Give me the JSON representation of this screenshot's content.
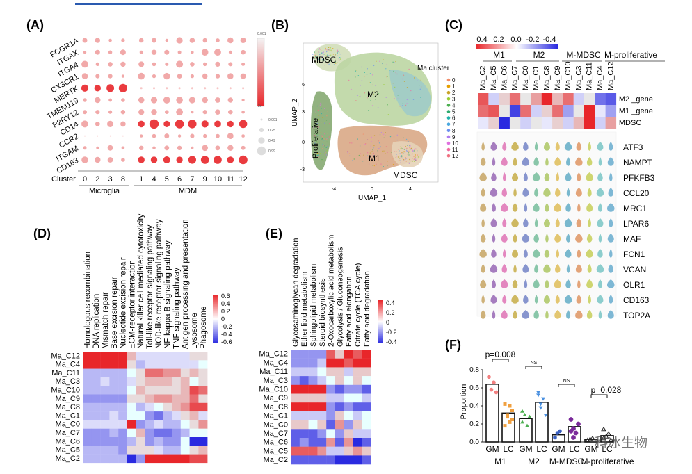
{
  "panels": {
    "A": "(A)",
    "B": "(B)",
    "C": "(C)",
    "D": "(D)",
    "E": "(E)",
    "F": "(F)"
  },
  "colors": {
    "red": "#e8262a",
    "blue": "#2a2ae0",
    "white": "#ffffff",
    "green": "#8fb87a",
    "tan": "#d9a07a"
  },
  "panel_a": {
    "genes": [
      "FCGR1A",
      "ITGAX",
      "ITGA4",
      "CX3CR1",
      "MERTK",
      "TMEM119",
      "P2RY12",
      "CD14",
      "CCR2",
      "ITGAM",
      "CD163"
    ],
    "clusters": [
      "0",
      "2",
      "3",
      "8",
      "1",
      "4",
      "5",
      "6",
      "7",
      "9",
      "10",
      "11",
      "12"
    ],
    "cluster_label": "Cluster",
    "group_labels": [
      "Microglia",
      "MDM"
    ],
    "color_legend": {
      "top": "0.001",
      "bottom": "2e-"
    },
    "size_legend": [
      "0.001",
      "0.25",
      "0.49",
      "0.99"
    ]
  },
  "panel_b": {
    "xlabel": "UMAP_1",
    "ylabel": "UMAP_2",
    "legend_title": "Ma cluster",
    "legend_items": [
      "0",
      "1",
      "2",
      "3",
      "4",
      "5",
      "6",
      "7",
      "8",
      "9",
      "10",
      "11",
      "12"
    ],
    "legend_colors": [
      "#f28e6b",
      "#e69f00",
      "#c9a227",
      "#9acd32",
      "#4caf50",
      "#2eaa6e",
      "#20b2aa",
      "#4aa8e0",
      "#6a8ff0",
      "#b07cf0",
      "#e070e0",
      "#f06aa0",
      "#f07080"
    ],
    "region_labels": [
      "MDSC",
      "M2",
      "Proliferative",
      "M1",
      "MDSC"
    ],
    "xticks": [
      "-4",
      "0",
      "4"
    ],
    "yticks": [
      "6",
      "3",
      "0",
      "-3"
    ]
  },
  "panel_c": {
    "scale_ticks": [
      "0.4",
      "0.2",
      "0.0",
      "-0.2",
      "-0.4"
    ],
    "groups": [
      "M1",
      "M2",
      "M-MDSC",
      "M-proliferative"
    ],
    "clusters": [
      "Ma_C2",
      "Ma_C5",
      "Ma_C6",
      "Ma_C7",
      "Ma_C0",
      "Ma_C1",
      "Ma_C8",
      "Ma_C9",
      "Ma_C10",
      "Ma_C3",
      "Ma_C11",
      "Ma_C4",
      "Ma_C12"
    ],
    "rows": [
      "M2 _gene",
      "M1 _gene",
      "MDSC"
    ],
    "matrix": [
      [
        0.35,
        -0.1,
        0.1,
        0.3,
        0.05,
        0.2,
        0.45,
        0.15,
        0.3,
        -0.1,
        0.05,
        -0.3,
        -0.35
      ],
      [
        0.3,
        0.35,
        0.05,
        -0.4,
        0.3,
        -0.1,
        0.1,
        0.3,
        -0.2,
        0.05,
        0.45,
        -0.05,
        -0.2
      ],
      [
        -0.05,
        0.1,
        -0.45,
        0.05,
        -0.1,
        0.05,
        -0.05,
        0.1,
        -0.1,
        0.15,
        0.45,
        -0.1,
        0.2
      ]
    ],
    "violin_genes": [
      "ATF3",
      "NAMPT",
      "PFKFB3",
      "CCL20",
      "MRC1",
      "LPAR6",
      "MAF",
      "FCN1",
      "VCAN",
      "OLR1",
      "CD163",
      "TOP2A"
    ],
    "violin_colors": [
      "#c9a86a",
      "#9c6fb8",
      "#e07ab8",
      "#c9b050",
      "#7a8ac9",
      "#7cc0a0",
      "#b0c96a",
      "#e0c060",
      "#6ab0c9",
      "#e09a6a",
      "#c9d060",
      "#80c8c8",
      "#70b0d0"
    ]
  },
  "panel_d": {
    "pathways": [
      "Homologous recombination",
      "DNA replication",
      "Mismatch repair",
      "Base excision repair",
      "Nucleotide excision repair",
      "ECM-receptor interaction",
      "Natural killer cell mediated cytotoxicity",
      "Toll-like receptor signaling pathway",
      "NOD-like receptor signaling pathway",
      "NF-kappa B signaling pathway",
      "TNF signaling pathway",
      "Antigen processing and presentation",
      "Lysosome",
      "Phagosome"
    ],
    "rows": [
      "Ma_C12",
      "Ma_C4",
      "Ma_C11",
      "Ma_C3",
      "Ma_C10",
      "Ma_C9",
      "Ma_C8",
      "Ma_C1",
      "Ma_C0",
      "Ma_C7",
      "Ma_C6",
      "Ma_C5",
      "Ma_C2"
    ],
    "scale_ticks": [
      "0.6",
      "0.4",
      "0.2",
      "0",
      "-0.2",
      "-0.4",
      "-0.6"
    ],
    "matrix": [
      [
        0.6,
        0.6,
        0.6,
        0.6,
        0.6,
        0.2,
        -0.1,
        -0.1,
        -0.1,
        -0.1,
        -0.1,
        -0.1,
        0.1,
        0.1
      ],
      [
        0.6,
        0.6,
        0.6,
        0.6,
        0.6,
        0.1,
        -0.2,
        -0.1,
        -0.1,
        -0.1,
        -0.1,
        -0.1,
        -0.1,
        0.0
      ],
      [
        -0.2,
        -0.2,
        -0.2,
        -0.2,
        -0.2,
        0.0,
        0.1,
        0.4,
        0.4,
        0.3,
        0.3,
        0.1,
        0.2,
        0.1
      ],
      [
        -0.2,
        -0.2,
        -0.1,
        -0.2,
        -0.2,
        -0.1,
        0.1,
        0.2,
        0.2,
        0.2,
        0.1,
        0.2,
        0.0,
        0.1
      ],
      [
        -0.2,
        -0.2,
        -0.2,
        -0.2,
        -0.2,
        0.0,
        0.2,
        0.1,
        0.1,
        0.1,
        0.1,
        0.2,
        0.5,
        0.4
      ],
      [
        -0.3,
        -0.3,
        -0.3,
        -0.3,
        -0.3,
        0.1,
        0.1,
        0.2,
        0.3,
        0.3,
        0.2,
        0.2,
        0.4,
        0.1
      ],
      [
        -0.2,
        -0.2,
        -0.2,
        -0.2,
        -0.2,
        0.0,
        -0.2,
        -0.1,
        0.0,
        0.1,
        0.2,
        0.3,
        0.5,
        0.5
      ],
      [
        -0.2,
        -0.2,
        -0.2,
        -0.1,
        -0.2,
        0.0,
        0.0,
        -0.3,
        -0.4,
        -0.2,
        -0.1,
        0.1,
        0.2,
        -0.1
      ],
      [
        -0.1,
        -0.1,
        -0.1,
        -0.1,
        -0.1,
        0.6,
        -0.3,
        -0.2,
        -0.1,
        -0.2,
        -0.2,
        0.0,
        0.1,
        0.3
      ],
      [
        -0.3,
        -0.3,
        -0.3,
        -0.2,
        -0.3,
        0.0,
        0.2,
        -0.3,
        -0.4,
        -0.4,
        -0.3,
        -0.2,
        0.0,
        0.0
      ],
      [
        -0.3,
        -0.3,
        -0.3,
        -0.3,
        -0.3,
        -0.2,
        0.1,
        -0.3,
        -0.2,
        -0.3,
        -0.3,
        0.0,
        -0.6,
        -0.6
      ],
      [
        -0.2,
        -0.2,
        -0.2,
        -0.2,
        -0.3,
        0.1,
        0.1,
        0.1,
        -0.1,
        -0.2,
        -0.2,
        0.0,
        0.1,
        0.2
      ],
      [
        -0.2,
        -0.2,
        -0.2,
        -0.2,
        -0.2,
        -0.6,
        -0.3,
        0.6,
        0.6,
        0.6,
        0.6,
        0.6,
        0.5,
        0.5
      ]
    ]
  },
  "panel_e": {
    "pathways": [
      "Glycosaminoglycan degradation",
      "Ether lipid metabolism",
      "Sphingolipid metabolism",
      "Steroid biosynthesis",
      "2-Oxocarboxylic acid metabolism",
      "Glycolysis / Gluconeogenesis",
      "Fatty acid elongation",
      "Citrate cycle (TCA cycle)",
      "Fatty acid degradation"
    ],
    "rows": [
      "Ma_C12",
      "Ma_C4",
      "Ma_C11",
      "Ma_C3",
      "Ma_C10",
      "Ma_C9",
      "Ma_C8",
      "Ma_C1",
      "Ma_C0",
      "Ma_C7",
      "Ma_C6",
      "Ma_C5",
      "Ma_C2"
    ],
    "scale_ticks": [
      "0.4",
      "0.2",
      "0",
      "-0.2",
      "-0.4"
    ],
    "matrix": [
      [
        -0.2,
        -0.2,
        -0.2,
        -0.2,
        0.3,
        0.1,
        0.4,
        0.3,
        0.4
      ],
      [
        -0.2,
        -0.2,
        -0.2,
        -0.1,
        0.4,
        0.4,
        0.3,
        0.4,
        0.4
      ],
      [
        -0.1,
        -0.1,
        -0.1,
        0.0,
        0.1,
        0.1,
        -0.1,
        0.1,
        0.1
      ],
      [
        -0.2,
        -0.3,
        -0.2,
        -0.1,
        0.0,
        0.1,
        0.0,
        0.1,
        0.0
      ],
      [
        0.4,
        0.4,
        0.4,
        0.4,
        -0.2,
        -0.3,
        -0.2,
        -0.2,
        -0.3
      ],
      [
        0.1,
        0.1,
        0.1,
        0.1,
        -0.1,
        -0.1,
        0.0,
        0.0,
        -0.1
      ],
      [
        0.4,
        0.4,
        0.4,
        0.4,
        -0.2,
        -0.3,
        -0.2,
        -0.3,
        -0.3
      ],
      [
        -0.1,
        -0.1,
        -0.1,
        -0.1,
        -0.2,
        0.1,
        0.0,
        -0.1,
        0.0
      ],
      [
        0.1,
        0.1,
        0.0,
        0.1,
        -0.3,
        0.2,
        -0.2,
        0.1,
        0.0
      ],
      [
        -0.3,
        -0.3,
        -0.3,
        -0.2,
        0.0,
        -0.2,
        0.1,
        -0.1,
        -0.1
      ],
      [
        -0.3,
        -0.2,
        -0.3,
        -0.3,
        0.2,
        -0.3,
        0.2,
        -0.4,
        -0.3
      ],
      [
        0.3,
        0.3,
        0.3,
        0.2,
        -0.1,
        -0.1,
        0.1,
        0.2,
        0.1
      ],
      [
        -0.3,
        -0.3,
        -0.3,
        -0.3,
        -0.3,
        -0.4,
        -0.4,
        -0.4,
        -0.3
      ]
    ]
  },
  "chart_data": {
    "type": "bar",
    "title": "(F)",
    "ylabel": "Proportion",
    "ylim": [
      0,
      0.8
    ],
    "yticks": [
      "0.0",
      "0.2",
      "0.4",
      "0.6",
      "0.8"
    ],
    "groups": [
      "M1",
      "M2",
      "M-MDSC",
      "M-proliferative"
    ],
    "conditions": [
      "GM",
      "LC"
    ],
    "series": [
      {
        "name": "GM",
        "values": [
          0.64,
          0.26,
          0.08,
          0.03
        ]
      },
      {
        "name": "LC",
        "values": [
          0.32,
          0.44,
          0.17,
          0.07
        ]
      }
    ],
    "points": {
      "GM": [
        [
          0.72,
          0.58,
          0.66,
          0.55
        ],
        [
          0.22,
          0.3,
          0.18,
          0.28,
          0.34
        ],
        [
          0.05,
          0.1,
          0.12
        ],
        [
          0.02,
          0.03,
          0.04
        ]
      ],
      "LC": [
        [
          0.42,
          0.28,
          0.22,
          0.35,
          0.18,
          0.3,
          0.4,
          0.25
        ],
        [
          0.55,
          0.38,
          0.48,
          0.3,
          0.52,
          0.42
        ],
        [
          0.25,
          0.15,
          0.1,
          0.2,
          0.12,
          0.05
        ],
        [
          0.14,
          0.06,
          0.09,
          0.02,
          0.04
        ]
      ]
    },
    "significance": [
      "p=0.008",
      "NS",
      "NS",
      "p=0.028"
    ],
    "point_colors": [
      "#f28080",
      "#f0a040",
      "#4caf50",
      "#4a90e0",
      "#3a60c0",
      "#7a2a9a",
      "#222222"
    ]
  },
  "watermark": "科冰生物"
}
